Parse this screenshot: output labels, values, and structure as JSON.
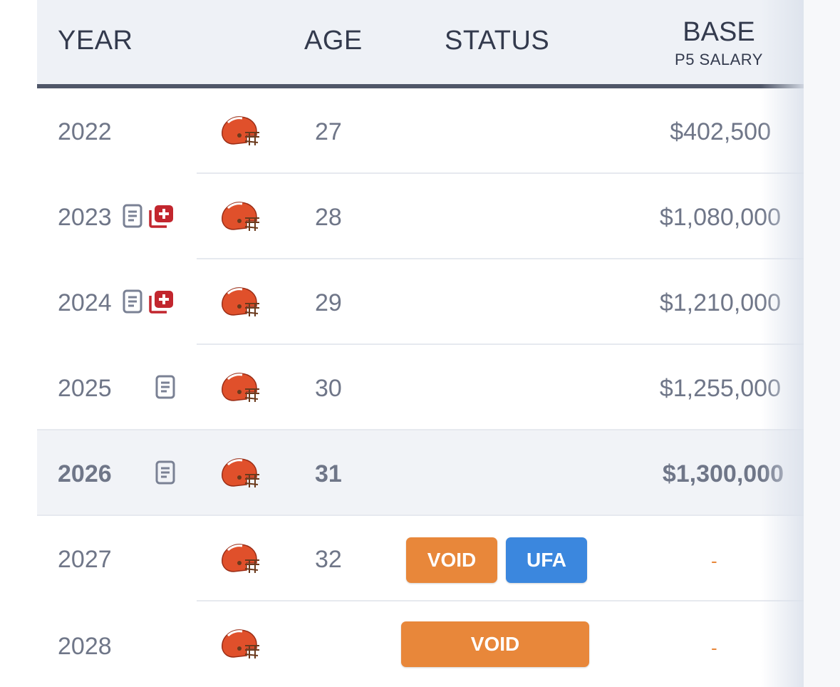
{
  "header": {
    "year": "YEAR",
    "age": "AGE",
    "status": "STATUS",
    "base": "BASE",
    "base_sub": "P5 SALARY"
  },
  "rows": [
    {
      "year": "2022",
      "age": "27",
      "salary": "$402,500"
    },
    {
      "year": "2023",
      "age": "28",
      "salary": "$1,080,000"
    },
    {
      "year": "2024",
      "age": "29",
      "salary": "$1,210,000"
    },
    {
      "year": "2025",
      "age": "30",
      "salary": "$1,255,000"
    },
    {
      "year": "2026",
      "age": "31",
      "salary": "$1,300,000"
    },
    {
      "year": "2027",
      "age": "32",
      "salary": "-",
      "badges": [
        "VOID",
        "UFA"
      ]
    },
    {
      "year": "2028",
      "age": "",
      "salary": "-",
      "badges": [
        "VOID"
      ]
    }
  ],
  "icons": {
    "team": "browns-helmet-icon",
    "contract": "document-icon",
    "injury": "medical-cross-icon"
  },
  "colors": {
    "void_badge": "#e8873a",
    "ufa_badge": "#3b87de",
    "header_text": "#333a4d",
    "cell_text": "#6f7688",
    "injury_icon": "#c2262e",
    "helmet_orange": "#e0502b"
  }
}
